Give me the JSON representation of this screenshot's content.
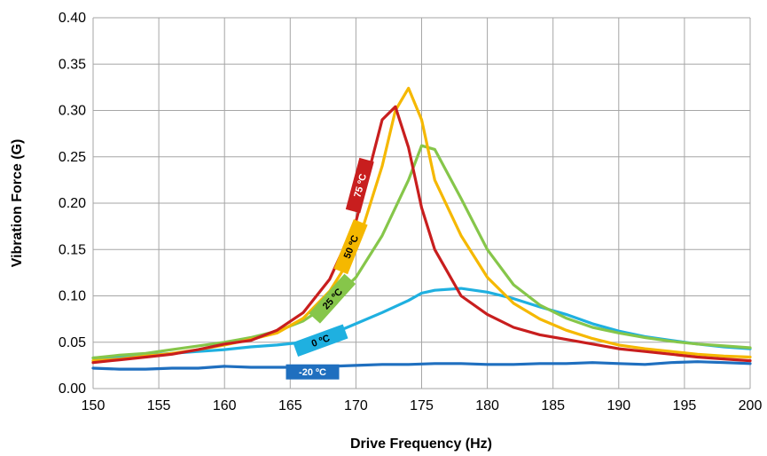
{
  "chart_data": {
    "type": "line",
    "xlabel": "Drive Frequency (Hz)",
    "ylabel": "Vibration Force (G)",
    "xlim": [
      150,
      200
    ],
    "ylim": [
      0,
      0.4
    ],
    "x_ticks": [
      "150",
      "155",
      "160",
      "165",
      "170",
      "175",
      "180",
      "185",
      "190",
      "195",
      "200"
    ],
    "y_ticks": [
      "0.00",
      "0.05",
      "0.10",
      "0.15",
      "0.20",
      "0.25",
      "0.30",
      "0.35",
      "0.40"
    ],
    "grid": true,
    "series": [
      {
        "name": "-20 ºC",
        "color": "#1f6fbf",
        "points": [
          [
            150,
            0.022
          ],
          [
            152,
            0.021
          ],
          [
            154,
            0.021
          ],
          [
            156,
            0.022
          ],
          [
            158,
            0.022
          ],
          [
            160,
            0.024
          ],
          [
            162,
            0.023
          ],
          [
            164,
            0.023
          ],
          [
            166,
            0.023
          ],
          [
            168,
            0.024
          ],
          [
            170,
            0.025
          ],
          [
            172,
            0.026
          ],
          [
            174,
            0.026
          ],
          [
            176,
            0.027
          ],
          [
            178,
            0.027
          ],
          [
            180,
            0.026
          ],
          [
            182,
            0.026
          ],
          [
            184,
            0.027
          ],
          [
            186,
            0.027
          ],
          [
            188,
            0.028
          ],
          [
            190,
            0.027
          ],
          [
            192,
            0.026
          ],
          [
            194,
            0.028
          ],
          [
            196,
            0.029
          ],
          [
            198,
            0.028
          ],
          [
            200,
            0.027
          ]
        ]
      },
      {
        "name": "0 ºC",
        "color": "#1fb0e0",
        "points": [
          [
            150,
            0.033
          ],
          [
            152,
            0.034
          ],
          [
            154,
            0.036
          ],
          [
            156,
            0.038
          ],
          [
            158,
            0.04
          ],
          [
            160,
            0.042
          ],
          [
            162,
            0.045
          ],
          [
            164,
            0.047
          ],
          [
            166,
            0.05
          ],
          [
            168,
            0.058
          ],
          [
            170,
            0.07
          ],
          [
            172,
            0.082
          ],
          [
            174,
            0.095
          ],
          [
            175,
            0.103
          ],
          [
            176,
            0.106
          ],
          [
            178,
            0.108
          ],
          [
            180,
            0.104
          ],
          [
            182,
            0.097
          ],
          [
            184,
            0.088
          ],
          [
            186,
            0.08
          ],
          [
            188,
            0.07
          ],
          [
            190,
            0.062
          ],
          [
            192,
            0.056
          ],
          [
            194,
            0.052
          ],
          [
            196,
            0.048
          ],
          [
            198,
            0.045
          ],
          [
            200,
            0.043
          ]
        ]
      },
      {
        "name": "25 ºC",
        "color": "#86c64a",
        "points": [
          [
            150,
            0.033
          ],
          [
            152,
            0.036
          ],
          [
            154,
            0.038
          ],
          [
            156,
            0.042
          ],
          [
            158,
            0.046
          ],
          [
            160,
            0.05
          ],
          [
            162,
            0.055
          ],
          [
            164,
            0.062
          ],
          [
            166,
            0.073
          ],
          [
            168,
            0.092
          ],
          [
            170,
            0.12
          ],
          [
            172,
            0.165
          ],
          [
            174,
            0.225
          ],
          [
            175,
            0.262
          ],
          [
            176,
            0.258
          ],
          [
            178,
            0.205
          ],
          [
            180,
            0.15
          ],
          [
            182,
            0.112
          ],
          [
            184,
            0.09
          ],
          [
            186,
            0.076
          ],
          [
            188,
            0.066
          ],
          [
            190,
            0.06
          ],
          [
            192,
            0.055
          ],
          [
            194,
            0.051
          ],
          [
            196,
            0.048
          ],
          [
            198,
            0.046
          ],
          [
            200,
            0.044
          ]
        ]
      },
      {
        "name": "50 ºC",
        "color": "#f5b800",
        "points": [
          [
            150,
            0.03
          ],
          [
            152,
            0.032
          ],
          [
            154,
            0.035
          ],
          [
            156,
            0.038
          ],
          [
            158,
            0.042
          ],
          [
            160,
            0.047
          ],
          [
            162,
            0.053
          ],
          [
            164,
            0.06
          ],
          [
            166,
            0.076
          ],
          [
            168,
            0.105
          ],
          [
            170,
            0.15
          ],
          [
            172,
            0.24
          ],
          [
            173,
            0.3
          ],
          [
            174,
            0.324
          ],
          [
            175,
            0.29
          ],
          [
            176,
            0.225
          ],
          [
            178,
            0.165
          ],
          [
            180,
            0.12
          ],
          [
            182,
            0.092
          ],
          [
            184,
            0.075
          ],
          [
            186,
            0.063
          ],
          [
            188,
            0.054
          ],
          [
            190,
            0.047
          ],
          [
            192,
            0.043
          ],
          [
            194,
            0.04
          ],
          [
            196,
            0.037
          ],
          [
            198,
            0.035
          ],
          [
            200,
            0.034
          ]
        ]
      },
      {
        "name": "75 ºC",
        "color": "#c81e1e",
        "points": [
          [
            150,
            0.028
          ],
          [
            152,
            0.031
          ],
          [
            154,
            0.034
          ],
          [
            156,
            0.037
          ],
          [
            158,
            0.042
          ],
          [
            160,
            0.048
          ],
          [
            162,
            0.052
          ],
          [
            164,
            0.063
          ],
          [
            166,
            0.082
          ],
          [
            168,
            0.118
          ],
          [
            170,
            0.18
          ],
          [
            172,
            0.29
          ],
          [
            173,
            0.304
          ],
          [
            174,
            0.26
          ],
          [
            175,
            0.195
          ],
          [
            176,
            0.15
          ],
          [
            178,
            0.1
          ],
          [
            180,
            0.08
          ],
          [
            182,
            0.066
          ],
          [
            184,
            0.058
          ],
          [
            186,
            0.053
          ],
          [
            188,
            0.048
          ],
          [
            190,
            0.043
          ],
          [
            192,
            0.04
          ],
          [
            194,
            0.037
          ],
          [
            196,
            0.034
          ],
          [
            198,
            0.032
          ],
          [
            200,
            0.03
          ]
        ]
      }
    ],
    "annotations": [
      {
        "text": "-20 ºC",
        "series": "-20 ºC",
        "x": 166.7,
        "y": 0.018,
        "rotate": 0,
        "bg": "#1f6fbf",
        "fg": "#ffffff"
      },
      {
        "text": "0 ºC",
        "series": "0 ºC",
        "x": 167.3,
        "y": 0.052,
        "rotate": -20,
        "bg": "#1fb0e0",
        "fg": "#000000"
      },
      {
        "text": "25 ºC",
        "series": "25 ºC",
        "x": 168.2,
        "y": 0.097,
        "rotate": -48,
        "bg": "#86c64a",
        "fg": "#000000"
      },
      {
        "text": "50 ºC",
        "series": "50 ºC",
        "x": 169.6,
        "y": 0.153,
        "rotate": -68,
        "bg": "#f5b800",
        "fg": "#000000"
      },
      {
        "text": "75 ºC",
        "series": "75 ºC",
        "x": 170.3,
        "y": 0.219,
        "rotate": -75,
        "bg": "#c81e1e",
        "fg": "#ffffff"
      }
    ]
  }
}
